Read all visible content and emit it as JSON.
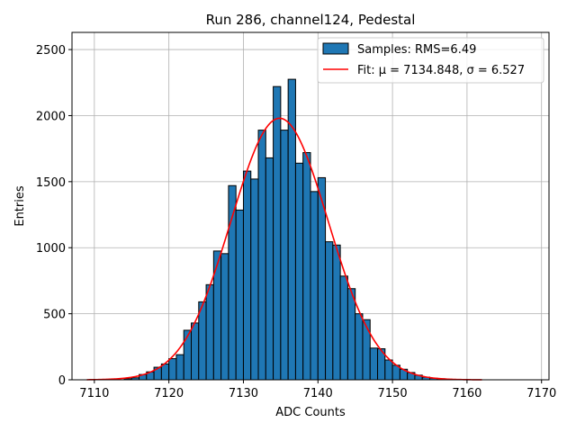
{
  "chart_data": {
    "type": "bar",
    "title": "Run 286, channel124, Pedestal",
    "xlabel": "ADC Counts",
    "ylabel": "Entries",
    "xlim": [
      7107,
      7171
    ],
    "ylim": [
      0,
      2630
    ],
    "xticks": [
      7110,
      7120,
      7130,
      7140,
      7150,
      7160,
      7170
    ],
    "yticks": [
      0,
      500,
      1000,
      1500,
      2000,
      2500
    ],
    "grid": true,
    "legend_position": "top-right",
    "histogram": {
      "name": "Samples: RMS=6.49",
      "color": "#1f77b4",
      "bin_width": 1,
      "bin_left_edges": [
        7110,
        7111,
        7112,
        7113,
        7114,
        7115,
        7116,
        7117,
        7118,
        7119,
        7120,
        7121,
        7122,
        7123,
        7124,
        7125,
        7126,
        7127,
        7128,
        7129,
        7130,
        7131,
        7132,
        7133,
        7134,
        7135,
        7136,
        7137,
        7138,
        7139,
        7140,
        7141,
        7142,
        7143,
        7144,
        7145,
        7146,
        7147,
        7148,
        7149,
        7150,
        7151,
        7152,
        7153,
        7154,
        7155,
        7156,
        7157,
        7158,
        7159,
        7160,
        7161
      ],
      "counts": [
        0,
        0,
        0,
        0,
        8,
        15,
        40,
        60,
        95,
        120,
        160,
        190,
        375,
        430,
        590,
        720,
        975,
        955,
        1470,
        1285,
        1580,
        1520,
        1890,
        1680,
        2220,
        1890,
        2275,
        1640,
        1720,
        1425,
        1530,
        1045,
        1020,
        785,
        690,
        500,
        455,
        240,
        235,
        150,
        110,
        80,
        55,
        35,
        20,
        12,
        8,
        4,
        2,
        0,
        0,
        0
      ]
    },
    "fit": {
      "name": "Fit: $\\mu$ = 7134.848, $\\sigma$ = 6.527",
      "legend_label_display": "Fit: μ = 7134.848, σ = 6.527",
      "mu": 7134.848,
      "sigma": 6.527,
      "amplitude": 1980,
      "x_range": [
        7109,
        7162
      ],
      "color": "#ff0000"
    }
  }
}
